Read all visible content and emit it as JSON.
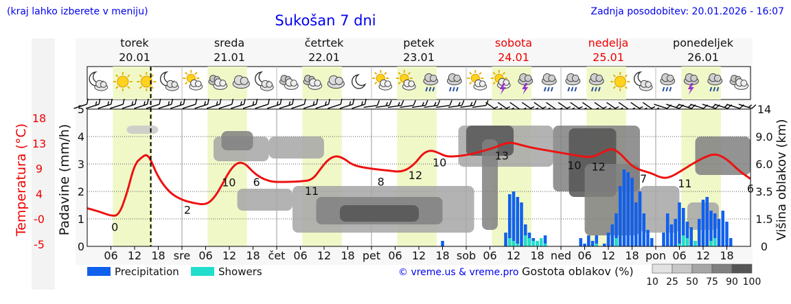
{
  "header": {
    "left_note": "(kraj lahko izberete v meniju)",
    "title": "Sukošan 7 dni",
    "updated": "Zadnja posodobitev: 20.01.2026 - 16:07"
  },
  "days": [
    {
      "name": "torek",
      "date": "20.01",
      "weekend": false
    },
    {
      "name": "sreda",
      "date": "21.01",
      "weekend": false
    },
    {
      "name": "četrtek",
      "date": "22.01",
      "weekend": false
    },
    {
      "name": "petek",
      "date": "23.01",
      "weekend": false
    },
    {
      "name": "sobota",
      "date": "24.01",
      "weekend": true
    },
    {
      "name": "nedelja",
      "date": "25.01",
      "weekend": true
    },
    {
      "name": "ponedeljek",
      "date": "26.01",
      "weekend": false
    }
  ],
  "weather_icons": [
    "moon-cloud",
    "sun",
    "sun",
    "moon-cloud",
    "sun-cloud",
    "clouds",
    "cloud",
    "moon-cloud",
    "clouds",
    "clouds",
    "cloud",
    "moon",
    "sun-cloud",
    "sun-cloud",
    "cloud-rain",
    "cloud-rain",
    "sun-cloud",
    "sun-storm",
    "storm",
    "cloud-rain",
    "cloud-rain",
    "cloud-rain",
    "sun",
    "moon-cloud",
    "cloud-rain",
    "storm",
    "cloud-rain",
    "clouds"
  ],
  "legend": {
    "precip_label": "Precipitation",
    "showers_label": "Showers",
    "credit": "© vreme.us & vreme.pro",
    "cloud_density_label": "Gostota oblakov (%)",
    "cloud_density_ticks": [
      "10",
      "25",
      "50",
      "75",
      "90",
      "100"
    ]
  },
  "colors": {
    "precipitation": "#1060ee",
    "showers": "#20ddcc",
    "temperature": "#ee1111",
    "daylight": "#f0f8c8",
    "text_blue": "#0000ee",
    "text_red": "#ee0000"
  },
  "chart_data": {
    "type": "line",
    "title": "Sukošan 7 dni",
    "x_unit": "hours from 20.01 00:00",
    "x_range": [
      0,
      168
    ],
    "x_tick_hours": [
      6,
      12,
      18,
      24,
      30,
      36,
      42,
      48,
      54,
      60,
      66,
      72,
      78,
      84,
      90,
      96,
      102,
      108,
      114,
      120,
      126,
      132,
      138,
      144,
      150,
      156,
      162
    ],
    "x_tick_labels": [
      "06",
      "12",
      "18",
      "sre",
      "06",
      "12",
      "18",
      "čet",
      "06",
      "12",
      "18",
      "pet",
      "06",
      "12",
      "18",
      "sob",
      "06",
      "12",
      "18",
      "ned",
      "06",
      "12",
      "18",
      "pon",
      "06",
      "12",
      "18"
    ],
    "now_marker_hour": 16.1,
    "daylight_hours": [
      [
        6.5,
        16.5
      ],
      [
        30.5,
        40.5
      ],
      [
        54.5,
        64.5
      ],
      [
        78.5,
        88.5
      ],
      [
        102.5,
        112.5
      ],
      [
        126.5,
        136.5
      ],
      [
        150.5,
        160.5
      ]
    ],
    "temperature": {
      "label": "Temperatura (°C)",
      "ticks": [
        "18",
        "13",
        "9",
        "4",
        "-0",
        "-5"
      ],
      "range": [
        -5.4,
        19.4
      ],
      "series": [
        [
          0,
          1.5
        ],
        [
          3,
          0.9
        ],
        [
          6,
          0.1
        ],
        [
          8,
          0.2
        ],
        [
          10,
          4
        ],
        [
          12,
          9.5
        ],
        [
          14,
          10.8
        ],
        [
          15,
          11.2
        ],
        [
          16,
          10.4
        ],
        [
          18,
          7
        ],
        [
          21,
          4.2
        ],
        [
          24,
          3
        ],
        [
          27,
          2.4
        ],
        [
          30,
          2.1
        ],
        [
          32,
          3.2
        ],
        [
          34,
          5.5
        ],
        [
          36,
          8.2
        ],
        [
          38,
          9.8
        ],
        [
          40,
          9.6
        ],
        [
          42,
          8
        ],
        [
          44,
          7
        ],
        [
          46,
          6.4
        ],
        [
          48,
          6.2
        ],
        [
          54,
          6.3
        ],
        [
          57,
          6.6
        ],
        [
          59,
          8.5
        ],
        [
          61,
          10.3
        ],
        [
          63,
          11
        ],
        [
          65,
          10.5
        ],
        [
          67,
          9.4
        ],
        [
          70,
          8.8
        ],
        [
          76,
          8.3
        ],
        [
          80,
          8
        ],
        [
          83,
          9.5
        ],
        [
          85,
          11.4
        ],
        [
          87,
          12
        ],
        [
          89,
          11.5
        ],
        [
          91,
          10.8
        ],
        [
          94,
          10.9
        ],
        [
          97,
          11.2
        ],
        [
          100,
          11.8
        ],
        [
          103,
          12.4
        ],
        [
          105,
          13
        ],
        [
          107,
          13.4
        ],
        [
          109,
          13.1
        ],
        [
          112,
          12.5
        ],
        [
          116,
          12
        ],
        [
          120,
          11.5
        ],
        [
          124,
          11
        ],
        [
          127,
          10.7
        ],
        [
          129,
          11
        ],
        [
          131,
          11.8
        ],
        [
          133,
          12.3
        ],
        [
          135,
          11.4
        ],
        [
          137,
          9.8
        ],
        [
          139,
          8.6
        ],
        [
          143,
          7.8
        ],
        [
          145,
          7.1
        ],
        [
          147,
          6.9
        ],
        [
          150,
          8
        ],
        [
          153,
          9.4
        ],
        [
          156,
          10.6
        ],
        [
          159,
          11.4
        ],
        [
          162,
          10.4
        ],
        [
          165,
          8.3
        ],
        [
          168,
          6.8
        ]
      ],
      "labels": [
        [
          8,
          0
        ],
        [
          29,
          2
        ],
        [
          41,
          10
        ],
        [
          49,
          6
        ],
        [
          65,
          11
        ],
        [
          85,
          8
        ],
        [
          95,
          12
        ],
        [
          102,
          10
        ],
        [
          120,
          13
        ],
        [
          141,
          10
        ],
        [
          148,
          12
        ],
        [
          161,
          7
        ],
        [
          173,
          11
        ],
        [
          192,
          6
        ]
      ]
    },
    "precipitation": {
      "label": "Padavine (mm/h)",
      "ticks": [
        "5",
        "4",
        "3",
        "2",
        "1",
        "0"
      ],
      "range": [
        0,
        5
      ],
      "bars": [
        [
          90,
          0.2
        ],
        [
          106,
          0.5
        ],
        [
          107,
          1.9
        ],
        [
          108,
          2.0
        ],
        [
          109,
          1.8
        ],
        [
          110,
          1.6
        ],
        [
          111,
          0.8
        ],
        [
          112,
          0.5
        ],
        [
          113,
          0.3
        ],
        [
          114,
          0.2
        ],
        [
          115,
          0.2
        ],
        [
          116,
          0.4
        ],
        [
          125,
          0.3
        ],
        [
          126,
          0.1
        ],
        [
          127,
          0.4
        ],
        [
          128,
          0.2
        ],
        [
          129,
          0.4
        ],
        [
          131,
          0.1
        ],
        [
          132,
          0.5
        ],
        [
          133,
          0.8
        ],
        [
          134,
          1.2
        ],
        [
          135,
          2.2
        ],
        [
          136,
          2.8
        ],
        [
          137,
          2.7
        ],
        [
          138,
          2.5
        ],
        [
          139,
          1.6
        ],
        [
          140,
          2.0
        ],
        [
          141,
          1.2
        ],
        [
          142,
          0.6
        ],
        [
          143,
          0.3
        ],
        [
          146,
          0.5
        ],
        [
          147,
          1.2
        ],
        [
          148,
          0.8
        ],
        [
          149,
          1.0
        ],
        [
          150,
          1.6
        ],
        [
          151,
          1.4
        ],
        [
          152,
          0.9
        ],
        [
          153,
          0.7
        ],
        [
          154,
          0.2
        ],
        [
          155,
          1.0
        ],
        [
          156,
          1.7
        ],
        [
          157,
          1.8
        ],
        [
          158,
          1.3
        ],
        [
          159,
          1.2
        ],
        [
          160,
          1.0
        ],
        [
          161,
          1.3
        ],
        [
          162,
          0.9
        ],
        [
          163,
          0.3
        ]
      ],
      "showers": [
        [
          107,
          0.3
        ],
        [
          108,
          0.2
        ],
        [
          109,
          0.1
        ],
        [
          111,
          0.4
        ],
        [
          112,
          0.3
        ],
        [
          113,
          0.2
        ],
        [
          114,
          0.2
        ],
        [
          115,
          0.3
        ],
        [
          116,
          0.1
        ],
        [
          129,
          0.1
        ],
        [
          134,
          0.3
        ],
        [
          150,
          0.1
        ],
        [
          151,
          0.4
        ],
        [
          152,
          0.3
        ],
        [
          154,
          0.2
        ],
        [
          158,
          0.2
        ],
        [
          159,
          0.3
        ]
      ]
    },
    "cloud_height": {
      "label": "Višina oblakov (km)",
      "ticks": [
        "14",
        "9.0",
        "6.0",
        "3.5",
        "1.5",
        "0"
      ]
    },
    "cloud_density_blocks": [
      [
        10,
        18,
        4.4,
        4.1,
        25
      ],
      [
        32,
        46,
        4.0,
        3.1,
        50
      ],
      [
        34,
        42,
        4.2,
        3.5,
        75
      ],
      [
        46,
        60,
        4.0,
        3.2,
        50
      ],
      [
        38,
        52,
        2.1,
        1.3,
        50
      ],
      [
        52,
        98,
        2.2,
        0.5,
        50
      ],
      [
        58,
        90,
        1.8,
        0.8,
        75
      ],
      [
        64,
        84,
        1.5,
        0.9,
        90
      ],
      [
        94,
        118,
        4.4,
        2.9,
        50
      ],
      [
        96,
        108,
        4.4,
        3.3,
        90
      ],
      [
        100,
        104,
        3.9,
        0.6,
        75
      ],
      [
        118,
        140,
        4.4,
        2.0,
        75
      ],
      [
        122,
        134,
        4.3,
        1.8,
        90
      ],
      [
        126,
        140,
        3.0,
        0.4,
        75
      ],
      [
        140,
        150,
        2.2,
        0.5,
        50
      ],
      [
        154,
        168,
        4.0,
        2.6,
        75
      ],
      [
        152,
        160,
        1.6,
        0.6,
        50
      ]
    ]
  }
}
